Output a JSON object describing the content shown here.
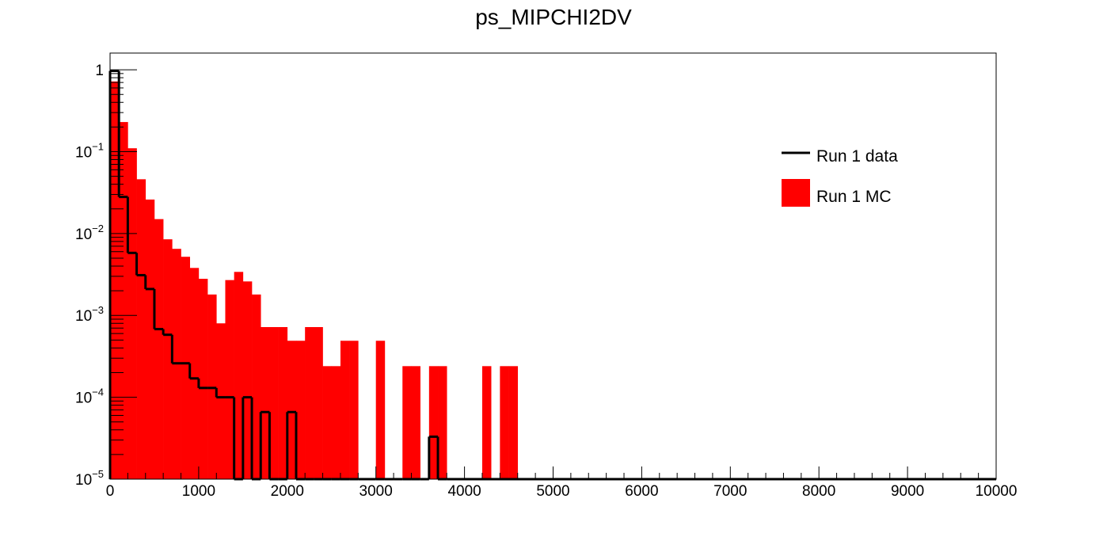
{
  "chart_data": {
    "type": "bar",
    "title": "ps_MIPCHI2DV",
    "xlabel": "",
    "ylabel": "",
    "xlim": [
      0,
      10000
    ],
    "ylim": [
      1e-05,
      1.6
    ],
    "log_y": true,
    "grid": false,
    "legend_position": "top-right",
    "bin_width": 100,
    "x_ticks": [
      "0",
      "1000",
      "2000",
      "3000",
      "4000",
      "5000",
      "6000",
      "7000",
      "8000",
      "9000",
      "10000"
    ],
    "y_ticks": [
      {
        "base": "1",
        "exp": ""
      },
      {
        "base": "10",
        "exp": "−1"
      },
      {
        "base": "10",
        "exp": "−2"
      },
      {
        "base": "10",
        "exp": "−3"
      },
      {
        "base": "10",
        "exp": "−4"
      },
      {
        "base": "10",
        "exp": "−5"
      }
    ],
    "series": [
      {
        "name": "Run 1 MC",
        "style": "fill",
        "color": "#ff0000",
        "values": [
          0.72,
          0.23,
          0.11,
          0.046,
          0.026,
          0.015,
          0.0085,
          0.0065,
          0.0052,
          0.0038,
          0.0028,
          0.0018,
          0.0008,
          0.0027,
          0.0034,
          0.0026,
          0.0018,
          0.00072,
          0.00072,
          0.00072,
          0.00049,
          0.00049,
          0.00072,
          0.00072,
          0.00024,
          0.00024,
          0.00049,
          0.00049,
          0,
          0,
          0.00049,
          0,
          0,
          0.00024,
          0.00024,
          0,
          0.00024,
          0.00024,
          0,
          0,
          0,
          0,
          0.00024,
          0,
          0.00024,
          0.00024
        ]
      },
      {
        "name": "Run 1 data",
        "style": "line",
        "color": "#000000",
        "values": [
          0.97,
          0.028,
          0.0058,
          0.0031,
          0.0021,
          0.00068,
          0.00058,
          0.00026,
          0.00026,
          0.00017,
          0.00013,
          0.00013,
          0.0001,
          0.0001,
          0,
          0.0001,
          0,
          6.6e-05,
          0,
          0,
          6.6e-05,
          0,
          0,
          0,
          0,
          0,
          0,
          0,
          0,
          0,
          0,
          0,
          0,
          0,
          0,
          0,
          3.3e-05,
          0
        ]
      }
    ]
  },
  "legend": {
    "items": [
      {
        "label": "Run 1 data",
        "color": "#000000",
        "swatch": "line"
      },
      {
        "label": "Run 1 MC",
        "color": "#ff0000",
        "swatch": "fill"
      }
    ]
  }
}
